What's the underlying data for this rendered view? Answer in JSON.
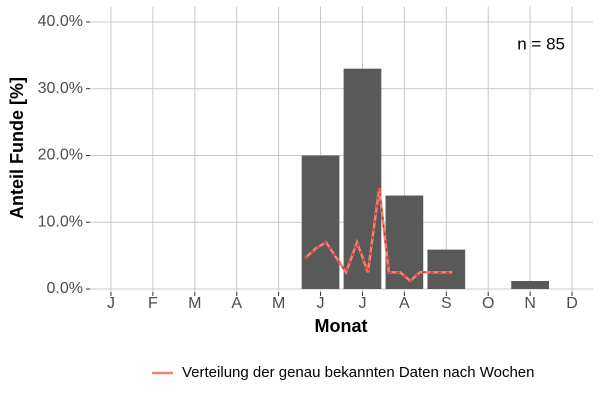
{
  "chart_data": {
    "type": "bar",
    "x_label": "Monat",
    "y_label": "Anteil Funde [%]",
    "annotation": "n = 85",
    "categories": [
      "J",
      "F",
      "M",
      "A",
      "M",
      "J",
      "J",
      "A",
      "S",
      "O",
      "N",
      "D"
    ],
    "values": [
      0,
      0,
      0,
      0,
      0,
      20,
      33,
      14,
      5.9,
      0,
      1.2,
      0
    ],
    "color": "#595959",
    "xlim": [
      0.5,
      12.5
    ],
    "ylim": [
      0,
      42
    ],
    "yticks": [
      {
        "value": 0,
        "label": "0.0%"
      },
      {
        "value": 10,
        "label": "10.0%"
      },
      {
        "value": 20,
        "label": "20.0%"
      },
      {
        "value": 30,
        "label": "30.0%"
      },
      {
        "value": 40,
        "label": "40.0%"
      }
    ],
    "grid": true,
    "legend": "bottom",
    "lines": [
      {
        "type": "line",
        "name": "Verteilung der genau bekannten Daten nach Wochen",
        "color": "#f08070",
        "x": [
          5.63,
          5.89,
          6.13,
          6.61,
          6.87,
          7.13,
          7.4,
          7.63,
          7.9,
          8.14,
          8.37,
          8.64,
          8.88,
          9.14
        ],
        "values": [
          4.6,
          6.1,
          7.0,
          2.5,
          7.0,
          2.5,
          15.1,
          2.5,
          2.5,
          1.2,
          2.5,
          2.5,
          2.5,
          2.5
        ]
      }
    ]
  }
}
